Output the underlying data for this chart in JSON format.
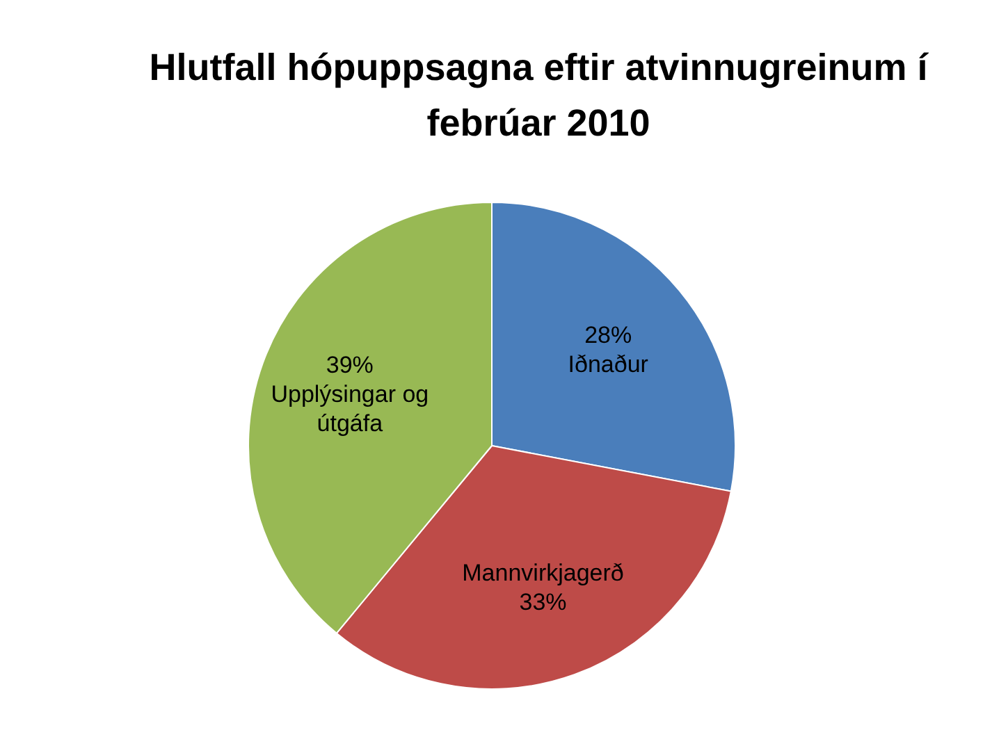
{
  "chart_data": {
    "type": "pie",
    "title": "Hlutfall hópuppsagna eftir atvinnugreinum í febrúar 2010",
    "categories": [
      "Iðnaður",
      "Mannvirkjagerð",
      "Upplýsingar og útgáfa"
    ],
    "values": [
      28,
      33,
      39
    ],
    "value_labels": [
      "28%",
      "33%",
      "39%"
    ],
    "colors": [
      "#4a7ebb",
      "#be4b48",
      "#98b954"
    ]
  }
}
